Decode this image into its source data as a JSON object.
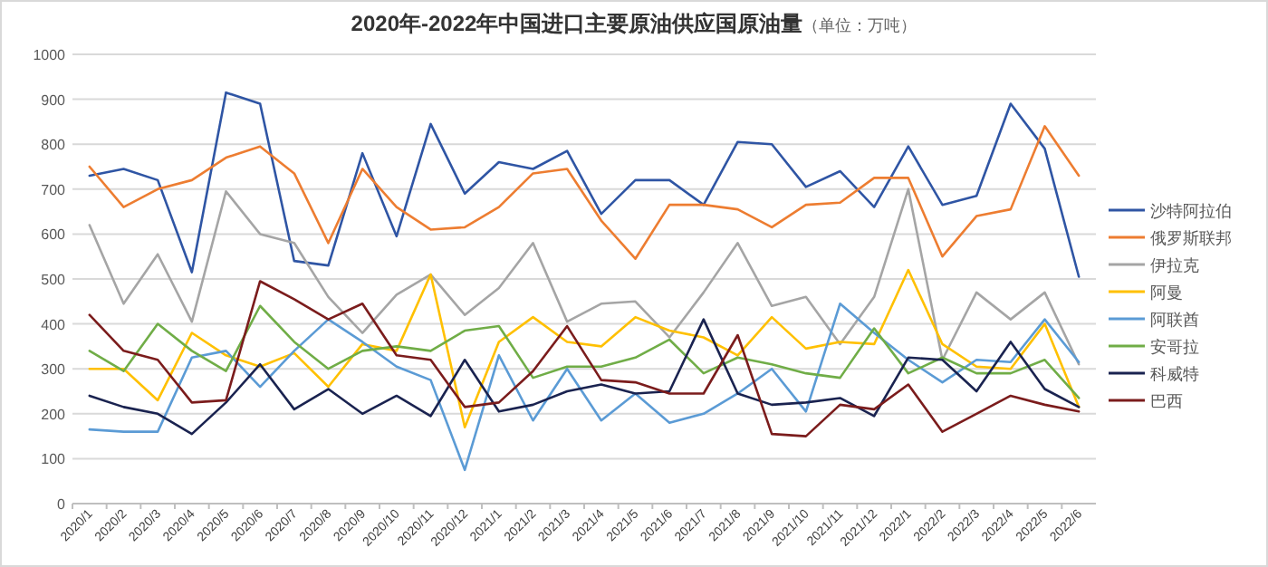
{
  "chart_data": {
    "type": "line",
    "title": "2020年-2022年中国进口主要原油供应国原油量",
    "subtitle": "（单位：万吨）",
    "categories": [
      "2020/1",
      "2020/2",
      "2020/3",
      "2020/4",
      "2020/5",
      "2020/6",
      "2020/7",
      "2020/8",
      "2020/9",
      "2020/10",
      "2020/11",
      "2020/12",
      "2021/1",
      "2021/2",
      "2021/3",
      "2021/4",
      "2021/5",
      "2021/6",
      "2021/7",
      "2021/8",
      "2021/9",
      "2021/10",
      "2021/11",
      "2021/12",
      "2022/1",
      "2022/2",
      "2022/3",
      "2022/4",
      "2022/5",
      "2022/6"
    ],
    "ylim": [
      0,
      1000
    ],
    "yticks": [
      0,
      100,
      200,
      300,
      400,
      500,
      600,
      700,
      800,
      900,
      1000
    ],
    "grid": "y",
    "legend": "right",
    "marker": "none",
    "line_style": "solid",
    "series": [
      {
        "name": "沙特阿拉伯",
        "color": "#2f55a4",
        "values": [
          730,
          745,
          720,
          515,
          915,
          890,
          540,
          530,
          780,
          595,
          845,
          690,
          760,
          745,
          785,
          645,
          720,
          720,
          665,
          805,
          800,
          705,
          740,
          660,
          795,
          665,
          685,
          890,
          790,
          505
        ]
      },
      {
        "name": "俄罗斯联邦",
        "color": "#ed7d31",
        "values": [
          750,
          660,
          700,
          720,
          770,
          795,
          735,
          580,
          745,
          660,
          610,
          615,
          660,
          735,
          745,
          630,
          545,
          665,
          665,
          655,
          615,
          665,
          670,
          725,
          725,
          550,
          640,
          655,
          840,
          730
        ]
      },
      {
        "name": "伊拉克",
        "color": "#a5a5a5",
        "values": [
          620,
          445,
          555,
          405,
          695,
          600,
          580,
          460,
          380,
          465,
          510,
          420,
          480,
          580,
          405,
          445,
          450,
          370,
          470,
          580,
          440,
          460,
          355,
          460,
          700,
          320,
          470,
          410,
          470,
          310
        ]
      },
      {
        "name": "阿曼",
        "color": "#ffc000",
        "values": [
          300,
          300,
          230,
          380,
          330,
          305,
          335,
          260,
          355,
          340,
          510,
          170,
          360,
          415,
          360,
          350,
          415,
          385,
          370,
          330,
          415,
          345,
          360,
          355,
          520,
          355,
          305,
          300,
          400,
          215
        ]
      },
      {
        "name": "阿联酋",
        "color": "#5b9bd5",
        "values": [
          165,
          160,
          160,
          325,
          340,
          260,
          340,
          410,
          360,
          305,
          275,
          75,
          330,
          185,
          300,
          185,
          245,
          180,
          200,
          245,
          300,
          205,
          445,
          380,
          320,
          270,
          320,
          315,
          410,
          315
        ]
      },
      {
        "name": "安哥拉",
        "color": "#70ad47",
        "values": [
          340,
          295,
          400,
          340,
          295,
          440,
          360,
          300,
          340,
          350,
          340,
          385,
          395,
          280,
          305,
          305,
          325,
          365,
          290,
          325,
          310,
          290,
          280,
          390,
          290,
          325,
          290,
          290,
          320,
          235
        ]
      },
      {
        "name": "科威特",
        "color": "#1a2350",
        "values": [
          240,
          215,
          200,
          155,
          225,
          310,
          210,
          255,
          200,
          240,
          195,
          320,
          205,
          220,
          250,
          265,
          245,
          250,
          410,
          245,
          220,
          225,
          235,
          195,
          325,
          320,
          250,
          360,
          255,
          215
        ]
      },
      {
        "name": "巴西",
        "color": "#7b1c1c",
        "values": [
          420,
          340,
          320,
          225,
          230,
          495,
          455,
          410,
          445,
          330,
          320,
          215,
          225,
          295,
          395,
          275,
          270,
          245,
          245,
          375,
          155,
          150,
          220,
          210,
          265,
          160,
          200,
          240,
          220,
          205
        ]
      }
    ]
  }
}
